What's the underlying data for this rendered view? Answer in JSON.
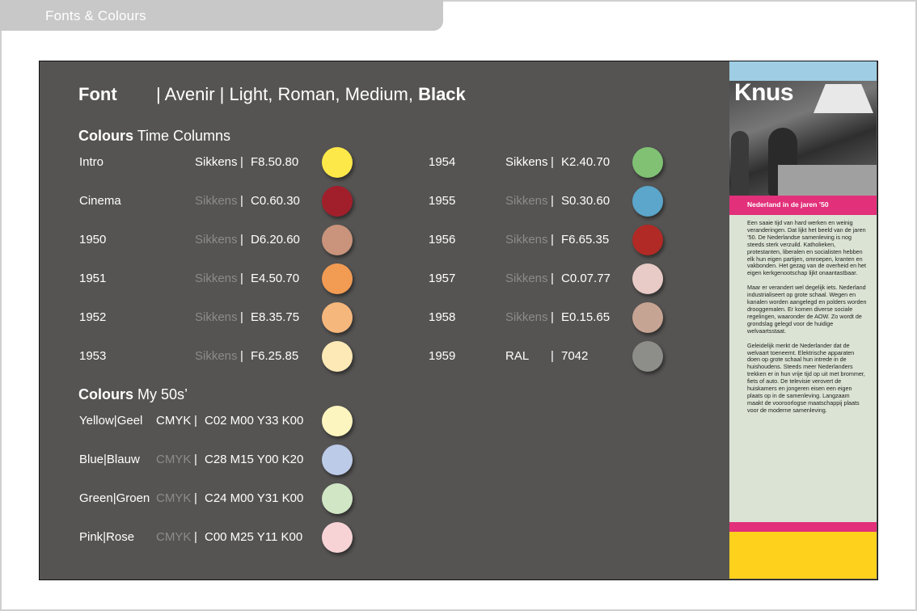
{
  "header": {
    "title": "Fonts & Colours"
  },
  "font": {
    "label": "Font",
    "spec_regular": "| Avenir | Light, Roman, Medium, ",
    "spec_black": "Black"
  },
  "time_columns": {
    "heading_bold": "Colours",
    "heading_rest": " Time Columns",
    "left": [
      {
        "label": "Intro",
        "brand": "Sikkens",
        "sep": "|",
        "code": "F8.50.80",
        "color": "#fde84a",
        "brand_highlight": true
      },
      {
        "label": "Cinema",
        "brand": "Sikkens",
        "sep": "|",
        "code": "C0.60.30",
        "color": "#a11f2b",
        "brand_highlight": false
      },
      {
        "label": "1950",
        "brand": "Sikkens",
        "sep": "|",
        "code": "D6.20.60",
        "color": "#c9937c",
        "brand_highlight": false
      },
      {
        "label": "1951",
        "brand": "Sikkens",
        "sep": "|",
        "code": "E4.50.70",
        "color": "#f29b53",
        "brand_highlight": false
      },
      {
        "label": "1952",
        "brand": "Sikkens",
        "sep": "|",
        "code": "E8.35.75",
        "color": "#f6b77d",
        "brand_highlight": false
      },
      {
        "label": "1953",
        "brand": "Sikkens",
        "sep": "|",
        "code": "F6.25.85",
        "color": "#fde9b6",
        "brand_highlight": false
      }
    ],
    "right": [
      {
        "label": "1954",
        "brand": "Sikkens",
        "sep": "|",
        "code": "K2.40.70",
        "color": "#80c174",
        "brand_highlight": true
      },
      {
        "label": "1955",
        "brand": "Sikkens",
        "sep": "|",
        "code": "S0.30.60",
        "color": "#5ba6ca",
        "brand_highlight": false
      },
      {
        "label": "1956",
        "brand": "Sikkens",
        "sep": "|",
        "code": "F6.65.35",
        "color": "#b12a25",
        "brand_highlight": false
      },
      {
        "label": "1957",
        "brand": "Sikkens",
        "sep": "|",
        "code": "C0.07.77",
        "color": "#e8cbc6",
        "brand_highlight": false
      },
      {
        "label": "1958",
        "brand": "Sikkens",
        "sep": "|",
        "code": "E0.15.65",
        "color": "#c6a493",
        "brand_highlight": false
      },
      {
        "label": "1959",
        "brand": "RAL",
        "sep": "|",
        "code": "7042",
        "color": "#8d8d89",
        "brand_highlight": true
      }
    ]
  },
  "my50s": {
    "heading_bold": "Colours",
    "heading_rest": " My 50s’",
    "rows": [
      {
        "label": "Yellow|Geel",
        "brand": "CMYK",
        "sep": "|",
        "code": "C02 M00 Y33 K00",
        "color": "#fdf5bf",
        "brand_highlight": true
      },
      {
        "label": "Blue|Blauw",
        "brand": "CMYK",
        "sep": "|",
        "code": "C28 M15 Y00 K20",
        "color": "#bccbe8",
        "brand_highlight": false
      },
      {
        "label": "Green|Groen",
        "brand": "CMYK",
        "sep": "|",
        "code": "C24 M00 Y31 K00",
        "color": "#d0e6c5",
        "brand_highlight": false
      },
      {
        "label": "Pink|Rose",
        "brand": "CMYK",
        "sep": "|",
        "code": "C00 M25 Y11 K00",
        "color": "#f7d3d6",
        "brand_highlight": false
      }
    ]
  },
  "panel": {
    "title": "Knus",
    "subtitle": "Nederland in de jaren ’50",
    "paragraphs": [
      "Een saaie tijd van hard werken en weinig veranderingen. Dat lijkt het beeld van de jaren ’50. De Nederlandse samenleving is nog steeds sterk verzuild. Katholieken, protestanten, liberalen en socialisten hebben elk hun eigen partijen, omroepen, kranten en vakbonden. Het gezag van de overheid en het eigen kerkgenootschap lijkt onaantastbaar.",
      "Maar er verandert wel degelijk iets. Nederland industrialiseert op grote schaal. Wegen en kanalen worden aangelegd en polders worden drooggemalen. Er komen diverse sociale regelingen, waaronder de AOW. Zo wordt de grondslag gelegd voor de huidige welvaartsstaat.",
      "Geleidelijk merkt de Nederlander dat de welvaart toeneemt. Elektrische apparaten doen op grote schaal hun intrede in de huishoudens. Steeds meer Nederlanders trekken er in hun vrije tijd op uit met brommer, fiets of auto. De televisie verovert de huiskamers en jongeren eisen een eigen plaats op in de samenleving. Langzaam maakt de vooroorlogse maatschappij plaats voor de moderne samenleving."
    ],
    "colors": {
      "top": "#9fcde3",
      "pink": "#e2307a",
      "body": "#dbe4d4",
      "yellow": "#fdd11c"
    }
  }
}
